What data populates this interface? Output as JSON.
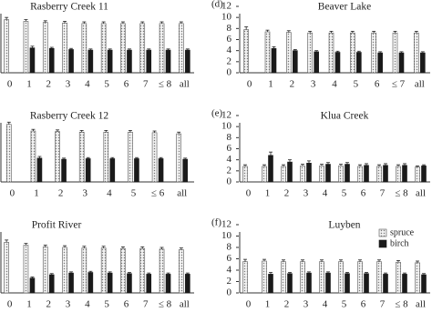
{
  "chart_data": [
    {
      "type": "bar",
      "title": "Rasberry Creek 11",
      "categories": [
        "0",
        "1",
        "2",
        "3",
        "4",
        "5",
        "6",
        "7",
        "≤ 8",
        "all"
      ],
      "series": [
        {
          "name": "spruce",
          "color": "#555555",
          "hatch": true,
          "values": [
            9.6,
            9.3,
            9.1,
            9.0,
            8.9,
            8.9,
            8.9,
            8.9,
            8.9,
            8.9
          ],
          "errors": [
            0.4,
            0.3,
            0.3,
            0.3,
            0.3,
            0.3,
            0.3,
            0.3,
            0.3,
            0.3
          ]
        },
        {
          "name": "birch",
          "color": "#1a1a1a",
          "hatch": false,
          "values": [
            null,
            4.5,
            4.4,
            4.2,
            4.1,
            4.1,
            4.1,
            4.1,
            4.1,
            4.1
          ],
          "errors": [
            null,
            0.3,
            0.2,
            0.2,
            0.2,
            0.2,
            0.2,
            0.2,
            0.2,
            0.2
          ]
        }
      ],
      "ylim": [
        0,
        12
      ]
    },
    {
      "type": "bar",
      "title": "Rasberry Creek 12",
      "categories": [
        "0",
        "1",
        "2",
        "3",
        "4",
        "5",
        "≤ 6",
        "all"
      ],
      "series": [
        {
          "name": "spruce",
          "color": "#555555",
          "hatch": true,
          "values": [
            10.4,
            9.2,
            9.1,
            9.0,
            9.0,
            9.0,
            8.9,
            8.7
          ],
          "errors": [
            0.4,
            0.3,
            0.3,
            0.3,
            0.3,
            0.3,
            0.3,
            0.3
          ]
        },
        {
          "name": "birch",
          "color": "#1a1a1a",
          "hatch": false,
          "values": [
            null,
            4.3,
            4.1,
            4.2,
            4.2,
            4.2,
            4.2,
            4.1
          ],
          "errors": [
            null,
            0.3,
            0.2,
            0.2,
            0.2,
            0.2,
            0.2,
            0.2
          ]
        }
      ],
      "ylim": [
        0,
        12
      ]
    },
    {
      "type": "bar",
      "title": "Profit River",
      "categories": [
        "0",
        "1",
        "2",
        "3",
        "4",
        "5",
        "6",
        "7",
        "≤ 8",
        "all"
      ],
      "series": [
        {
          "name": "spruce",
          "color": "#555555",
          "hatch": true,
          "values": [
            8.9,
            8.4,
            8.1,
            8.0,
            7.9,
            7.9,
            7.8,
            7.8,
            7.7,
            7.6
          ],
          "errors": [
            0.4,
            0.3,
            0.3,
            0.3,
            0.3,
            0.3,
            0.3,
            0.3,
            0.3,
            0.3
          ]
        },
        {
          "name": "birch",
          "color": "#1a1a1a",
          "hatch": false,
          "values": [
            null,
            2.6,
            3.2,
            3.5,
            3.6,
            3.5,
            3.4,
            3.3,
            3.3,
            3.3
          ],
          "errors": [
            null,
            0.2,
            0.2,
            0.2,
            0.2,
            0.2,
            0.2,
            0.2,
            0.2,
            0.2
          ]
        }
      ],
      "ylim": [
        0,
        12
      ]
    },
    {
      "type": "bar",
      "label": "(d)",
      "title": "Beaver Lake",
      "categories": [
        "0",
        "1",
        "2",
        "3",
        "4",
        "5",
        "6",
        "≤ 7",
        "all"
      ],
      "series": [
        {
          "name": "spruce",
          "color": "#555555",
          "hatch": true,
          "values": [
            7.8,
            7.4,
            7.3,
            7.2,
            7.2,
            7.2,
            7.2,
            7.2,
            7.2
          ],
          "errors": [
            0.5,
            0.3,
            0.3,
            0.3,
            0.3,
            0.3,
            0.3,
            0.3,
            0.3
          ]
        },
        {
          "name": "birch",
          "color": "#1a1a1a",
          "hatch": false,
          "values": [
            null,
            4.4,
            4.0,
            3.8,
            3.7,
            3.7,
            3.6,
            3.6,
            3.6
          ],
          "errors": [
            null,
            0.3,
            0.2,
            0.2,
            0.2,
            0.2,
            0.2,
            0.2,
            0.2
          ]
        }
      ],
      "ylim": [
        0,
        12
      ],
      "yticks": [
        0,
        2,
        4,
        6,
        8,
        10,
        12
      ]
    },
    {
      "type": "bar",
      "label": "(e)",
      "title": "Klua Creek",
      "categories": [
        "0",
        "1",
        "2",
        "3",
        "4",
        "5",
        "6",
        "7",
        "≤ 8",
        "all"
      ],
      "series": [
        {
          "name": "spruce",
          "color": "#555555",
          "hatch": true,
          "values": [
            2.8,
            2.8,
            2.8,
            2.9,
            2.9,
            2.9,
            2.8,
            2.8,
            2.8,
            2.7
          ],
          "errors": [
            0.3,
            0.3,
            0.3,
            0.3,
            0.3,
            0.3,
            0.3,
            0.3,
            0.3,
            0.2
          ]
        },
        {
          "name": "birch",
          "color": "#1a1a1a",
          "hatch": false,
          "values": [
            null,
            4.8,
            3.6,
            3.4,
            3.2,
            3.2,
            3.0,
            3.0,
            3.0,
            2.9
          ],
          "errors": [
            null,
            0.6,
            0.4,
            0.4,
            0.3,
            0.3,
            0.3,
            0.3,
            0.3,
            0.2
          ]
        }
      ],
      "ylim": [
        0,
        12
      ],
      "yticks": [
        0,
        2,
        4,
        6,
        8,
        10,
        12
      ]
    },
    {
      "type": "bar",
      "label": "(f)",
      "title": "Luyben",
      "categories": [
        "0",
        "1",
        "2",
        "3",
        "4",
        "5",
        "6",
        "7",
        "≤ 8",
        "all"
      ],
      "series": [
        {
          "name": "spruce",
          "color": "#555555",
          "hatch": true,
          "values": [
            5.5,
            5.6,
            5.5,
            5.5,
            5.5,
            5.5,
            5.5,
            5.5,
            5.4,
            5.3
          ],
          "errors": [
            0.4,
            0.3,
            0.3,
            0.3,
            0.3,
            0.3,
            0.3,
            0.3,
            0.3,
            0.3
          ]
        },
        {
          "name": "birch",
          "color": "#1a1a1a",
          "hatch": false,
          "values": [
            null,
            3.3,
            3.4,
            3.5,
            3.5,
            3.4,
            3.4,
            3.3,
            3.3,
            3.2
          ],
          "errors": [
            null,
            0.3,
            0.2,
            0.2,
            0.2,
            0.2,
            0.2,
            0.2,
            0.2,
            0.2
          ]
        }
      ],
      "ylim": [
        0,
        12
      ],
      "yticks": [
        0,
        2,
        4,
        6,
        8,
        10,
        12
      ],
      "legend": "upper right"
    }
  ]
}
